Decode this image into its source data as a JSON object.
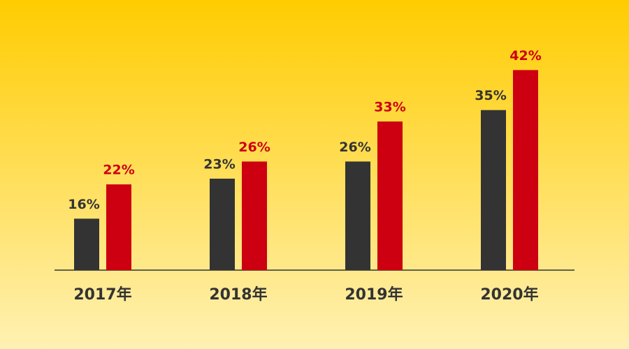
{
  "chart_data": {
    "type": "bar",
    "categories": [
      "2017年",
      "2018年",
      "2019年",
      "2020年"
    ],
    "series": [
      {
        "color": "#333333",
        "values": [
          16,
          23,
          26,
          35
        ],
        "value_labels": [
          "16%",
          "23%",
          "26%",
          "35%"
        ]
      },
      {
        "color": "#cc0011",
        "values": [
          22,
          26,
          33,
          42
        ],
        "value_labels": [
          "22%",
          "26%",
          "33%",
          "42%"
        ]
      }
    ],
    "ylim": [
      7,
      44
    ]
  }
}
